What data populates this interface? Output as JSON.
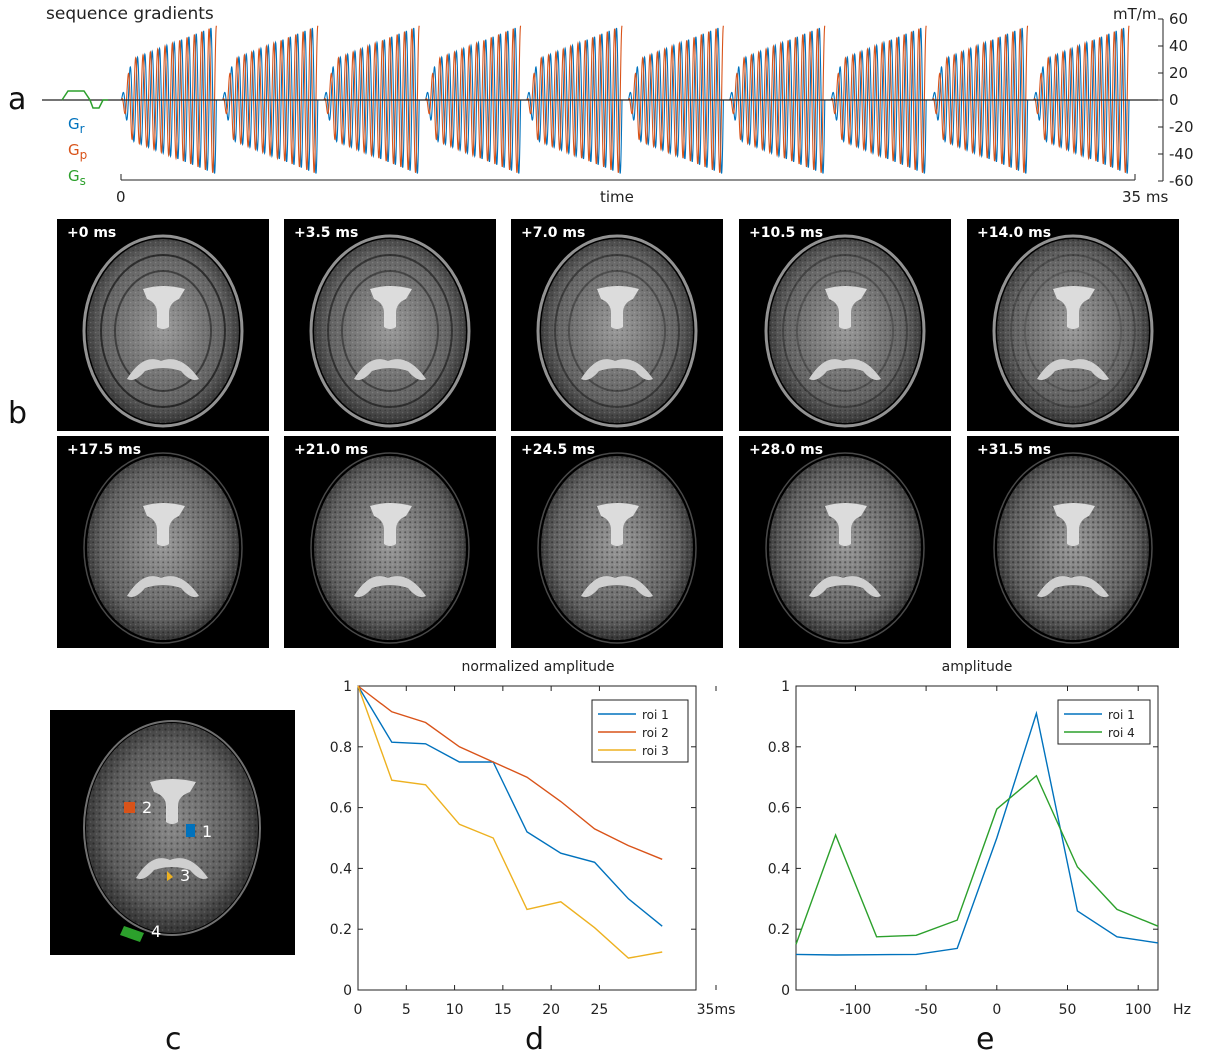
{
  "panel_labels": {
    "a": "a",
    "b": "b",
    "c": "c",
    "d": "d",
    "e": "e"
  },
  "panel_a": {
    "title": "sequence gradients",
    "unit": "mT/m",
    "yticks": [
      "60",
      "40",
      "20",
      "0",
      "-20",
      "-40",
      "-60"
    ],
    "xlabel": "time",
    "xstart": "0",
    "xend": "35 ms",
    "legend": [
      {
        "G": "G",
        "sub": "r",
        "color": "#0072BD"
      },
      {
        "G": "G",
        "sub": "p",
        "color": "#D95319"
      },
      {
        "G": "G",
        "sub": "s",
        "color": "#2CA02C"
      }
    ]
  },
  "panel_b": {
    "tiles": [
      "+0 ms",
      "+3.5 ms",
      "+7.0 ms",
      "+10.5 ms",
      "+14.0 ms",
      "+17.5 ms",
      "+21.0 ms",
      "+24.5 ms",
      "+28.0 ms",
      "+31.5 ms"
    ]
  },
  "panel_c": {
    "rois": [
      {
        "label": "2",
        "color": "#D95319"
      },
      {
        "label": "1",
        "color": "#0072BD"
      },
      {
        "label": "3",
        "color": "#EDB120"
      },
      {
        "label": "4",
        "color": "#2CA02C"
      }
    ]
  },
  "chart_data": [
    {
      "type": "line",
      "title": "normalized amplitude",
      "x_unit": "ms",
      "xticks": [
        "0",
        "5",
        "10",
        "15",
        "20",
        "25",
        "35ms"
      ],
      "yticks": [
        "0",
        "0.2",
        "0.4",
        "0.6",
        "0.8",
        "1"
      ],
      "xlim": [
        0,
        35
      ],
      "ylim": [
        0,
        1
      ],
      "x": [
        0,
        3.5,
        7.0,
        10.5,
        14.0,
        17.5,
        21.0,
        24.5,
        28.0,
        31.5
      ],
      "series": [
        {
          "name": "roi 1",
          "color": "#0072BD",
          "values": [
            1.0,
            0.815,
            0.81,
            0.75,
            0.75,
            0.52,
            0.45,
            0.42,
            0.3,
            0.21
          ]
        },
        {
          "name": "roi 2",
          "color": "#D95319",
          "values": [
            1.0,
            0.915,
            0.88,
            0.8,
            0.75,
            0.7,
            0.62,
            0.53,
            0.475,
            0.43
          ]
        },
        {
          "name": "roi 3",
          "color": "#EDB120",
          "values": [
            1.0,
            0.69,
            0.675,
            0.545,
            0.5,
            0.265,
            0.29,
            0.205,
            0.105,
            0.125
          ]
        }
      ]
    },
    {
      "type": "line",
      "title": "amplitude",
      "x_unit": "Hz",
      "xticks": [
        "-100",
        "-50",
        "0",
        "50",
        "100",
        "Hz"
      ],
      "yticks": [
        "0",
        "0.2",
        "0.4",
        "0.6",
        "0.8",
        "1"
      ],
      "xlim": [
        -142,
        114
      ],
      "ylim": [
        0,
        1
      ],
      "x": [
        -142,
        -114,
        -85,
        -57,
        -28,
        0,
        28,
        57,
        85,
        114
      ],
      "series": [
        {
          "name": "roi 1",
          "color": "#0072BD",
          "values": [
            0.117,
            0.115,
            0.116,
            0.117,
            0.137,
            0.5,
            0.91,
            0.26,
            0.175,
            0.155
          ]
        },
        {
          "name": "roi 4",
          "color": "#2CA02C",
          "values": [
            0.15,
            0.51,
            0.175,
            0.18,
            0.23,
            0.595,
            0.705,
            0.405,
            0.265,
            0.21
          ]
        }
      ]
    }
  ]
}
